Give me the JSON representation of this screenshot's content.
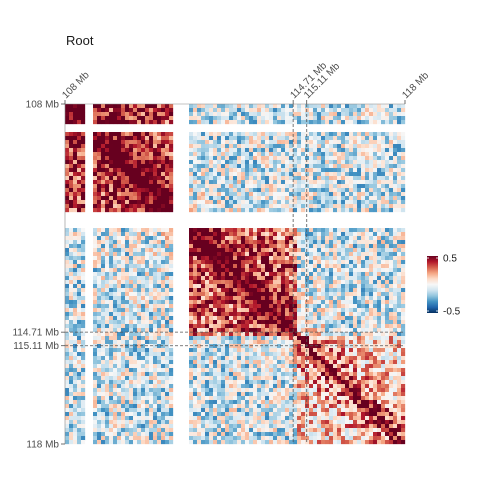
{
  "chart_data": {
    "type": "heatmap",
    "title": "Root",
    "xlabel": "",
    "ylabel": "",
    "x_ticks": [
      {
        "label": "108 Mb",
        "value": 108.0
      },
      {
        "label": "114.71 Mb",
        "value": 114.71
      },
      {
        "label": "115.11 Mb",
        "value": 115.11
      },
      {
        "label": "118 Mb",
        "value": 118.0
      }
    ],
    "y_ticks": [
      {
        "label": "108 Mb",
        "value": 108.0
      },
      {
        "label": "114.71 Mb",
        "value": 114.71
      },
      {
        "label": "115.11 Mb",
        "value": 115.11
      },
      {
        "label": "118 Mb",
        "value": 118.0
      }
    ],
    "axis_range": [
      108.0,
      118.0
    ],
    "highlight_positions": [
      114.71,
      115.11
    ],
    "masked_regions": [
      [
        108.58,
        108.85
      ],
      [
        111.22,
        111.6
      ]
    ],
    "blocks": [
      {
        "range": [
          108.0,
          111.3
        ],
        "strength": 0.35
      },
      {
        "range": [
          111.6,
          114.8
        ],
        "strength": 0.28
      },
      {
        "range": [
          114.8,
          118.0
        ],
        "strength": 0.1
      }
    ],
    "color_scale": {
      "min": -0.5,
      "max": 0.5,
      "labels": [
        "0.5",
        "-0.5"
      ],
      "colors": [
        "#053061",
        "#2166ac",
        "#4393c3",
        "#92c5de",
        "#d1e5f0",
        "#f7f7f7",
        "#fddbc7",
        "#f4a582",
        "#d6604d",
        "#b2182b",
        "#67001f"
      ]
    },
    "legend_position": "right",
    "grid": false
  }
}
